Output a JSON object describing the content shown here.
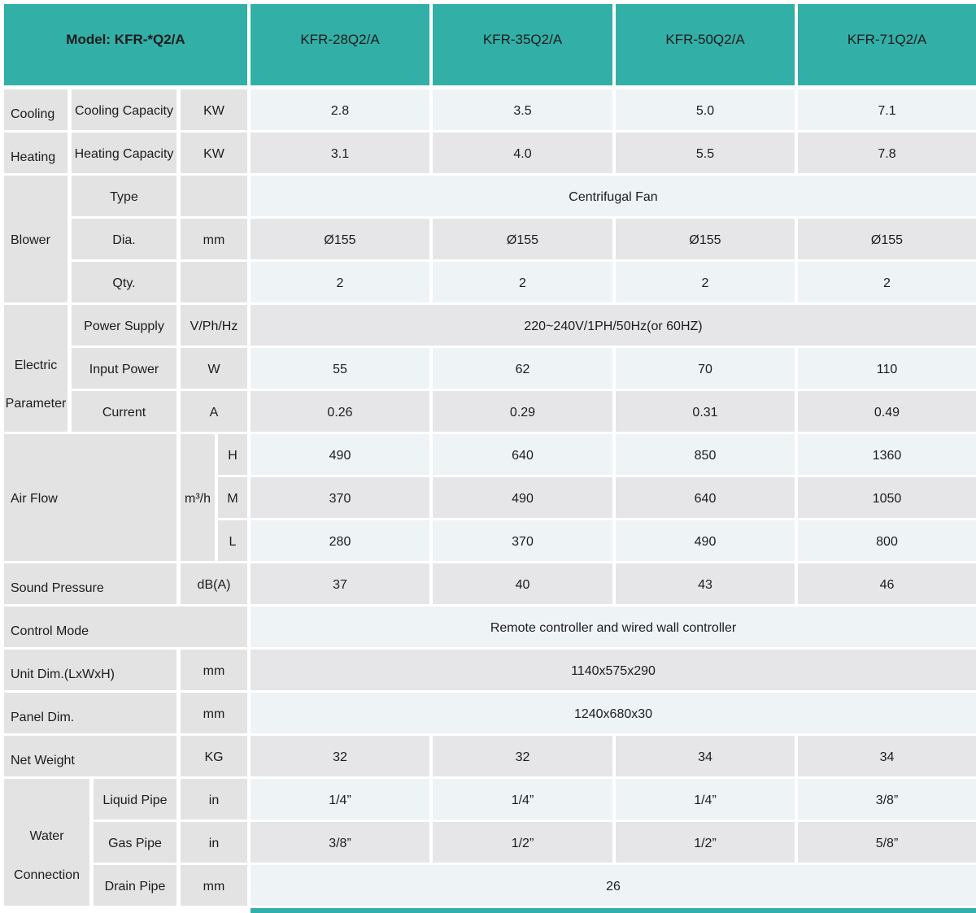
{
  "colors": {
    "header_teal": "#32afa7",
    "label_gray": "#e3e3e4",
    "row_light": "#eef3f6",
    "row_gray": "#e6e6e8",
    "text": "#1c1c1c"
  },
  "header": {
    "model_label": "Model: KFR-*Q2/A",
    "models": [
      "KFR-28Q2/A",
      "KFR-35Q2/A",
      "KFR-50Q2/A",
      "KFR-71Q2/A"
    ]
  },
  "sections": {
    "cooling": {
      "group": "Cooling",
      "param": "Cooling Capacity",
      "unit": "KW",
      "values": [
        "2.8",
        "3.5",
        "5.0",
        "7.1"
      ]
    },
    "heating": {
      "group": "Heating",
      "param": "Heating Capacity",
      "unit": "KW",
      "values": [
        "3.1",
        "4.0",
        "5.5",
        "7.8"
      ]
    },
    "blower": {
      "group": "Blower",
      "type": {
        "param": "Type",
        "value": "Centrifugal Fan"
      },
      "dia": {
        "param": "Dia.",
        "unit": "mm",
        "values": [
          "Ø155",
          "Ø155",
          "Ø155",
          "Ø155"
        ]
      },
      "qty": {
        "param": "Qty.",
        "values": [
          "2",
          "2",
          "2",
          "2"
        ]
      }
    },
    "electric": {
      "group": "Electric Parameter",
      "power_supply": {
        "param": "Power Supply",
        "unit": "V/Ph/Hz",
        "value": "220~240V/1PH/50Hz(or 60HZ)"
      },
      "input_power": {
        "param": "Input Power",
        "unit": "W",
        "values": [
          "55",
          "62",
          "70",
          "110"
        ]
      },
      "current": {
        "param": "Current",
        "unit": "A",
        "values": [
          "0.26",
          "0.29",
          "0.31",
          "0.49"
        ]
      }
    },
    "air_flow": {
      "group": "Air Flow",
      "unit": "m³/h",
      "h": {
        "param": "H",
        "values": [
          "490",
          "640",
          "850",
          "1360"
        ]
      },
      "m": {
        "param": "M",
        "values": [
          "370",
          "490",
          "640",
          "1050"
        ]
      },
      "l": {
        "param": "L",
        "values": [
          "280",
          "370",
          "490",
          "800"
        ]
      }
    },
    "sound_pressure": {
      "group": "Sound Pressure",
      "unit": "dB(A)",
      "values": [
        "37",
        "40",
        "43",
        "46"
      ]
    },
    "control_mode": {
      "group": "Control Mode",
      "value": "Remote controller and wired wall controller"
    },
    "unit_dim": {
      "group": "Unit Dim.(LxWxH)",
      "unit": "mm",
      "value": "1140x575x290"
    },
    "panel_dim": {
      "group": "Panel Dim.",
      "unit": "mm",
      "value": "1240x680x30"
    },
    "net_weight": {
      "group": "Net Weight",
      "unit": "KG",
      "values": [
        "32",
        "32",
        "34",
        "34"
      ]
    },
    "water": {
      "group": "Water Connection",
      "liquid": {
        "param": "Liquid Pipe",
        "unit": "in",
        "values": [
          "1/4”",
          "1/4”",
          "1/4”",
          "3/8”"
        ]
      },
      "gas": {
        "param": "Gas Pipe",
        "unit": "in",
        "values": [
          "3/8”",
          "1/2”",
          "1/2”",
          "5/8”"
        ]
      },
      "drain": {
        "param": "Drain Pipe",
        "unit": "mm",
        "value": "26"
      }
    }
  }
}
